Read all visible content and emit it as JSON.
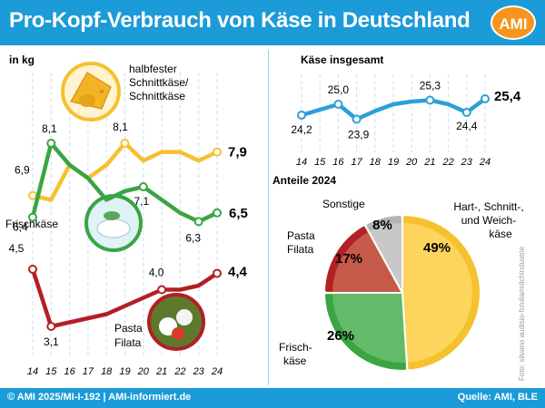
{
  "title": "Pro-Kopf-Verbrauch von Käse in Deutschland",
  "logo": "AMI",
  "footer": {
    "left": "© AMI 2025/MI-I-192 | AMI-informiert.de",
    "right": "Quelle: AMI, BLE"
  },
  "photo_credit": "Foto: silvano audisio-fotolia/milchindustrie",
  "colors": {
    "header": "#1b9bd7",
    "halbfest": "#f6c12e",
    "frisch": "#3aa542",
    "pasta": "#b31f24",
    "insgesamt": "#2d9fd8",
    "sonstige": "#b3b3b3",
    "logo": "#f7941d"
  },
  "chart_data": [
    {
      "type": "line",
      "ylabel": "in kg",
      "x": [
        "14",
        "15",
        "16",
        "17",
        "18",
        "19",
        "20",
        "21",
        "22",
        "23",
        "24"
      ],
      "series": [
        {
          "name": "halbfester Schnittkäse/ Schnittkäse",
          "values": [
            6.9,
            6.8,
            7.6,
            7.3,
            7.6,
            8.1,
            7.7,
            7.9,
            7.9,
            7.7,
            7.9
          ],
          "labels": [
            "6,9",
            "",
            "",
            "",
            "",
            "8,1",
            "",
            "",
            "",
            "",
            "7,9"
          ]
        },
        {
          "name": "Frischkäse",
          "values": [
            6.4,
            8.1,
            7.6,
            7.3,
            6.8,
            7.0,
            7.1,
            6.8,
            6.5,
            6.3,
            6.5
          ],
          "labels": [
            "6,4",
            "8,1",
            "",
            "",
            "",
            "",
            "7,1",
            "",
            "",
            "6,3",
            "6,5"
          ]
        },
        {
          "name": "Pasta Filata",
          "values": [
            4.5,
            3.1,
            3.2,
            3.3,
            3.4,
            3.6,
            3.8,
            4.0,
            4.0,
            4.1,
            4.4
          ],
          "labels": [
            "4,5",
            "3,1",
            "",
            "",
            "",
            "",
            "",
            "4,0",
            "",
            "",
            "4,4"
          ]
        }
      ]
    },
    {
      "type": "line",
      "title": "Käse insgesamt",
      "x": [
        "14",
        "15",
        "16",
        "17",
        "18",
        "19",
        "20",
        "21",
        "22",
        "23",
        "24"
      ],
      "series": [
        {
          "name": "Käse insgesamt",
          "values": [
            24.2,
            24.6,
            25.0,
            23.9,
            24.5,
            25.0,
            25.2,
            25.3,
            25.0,
            24.4,
            25.4
          ],
          "labels": [
            "24,2",
            "",
            "25,0",
            "23,9",
            "",
            "",
            "",
            "25,3",
            "",
            "24,4",
            "25,4"
          ]
        }
      ]
    },
    {
      "type": "pie",
      "title": "Anteile 2024",
      "slices": [
        {
          "name": "Hart-, Schnitt-, und Weichkäse",
          "value": 49,
          "label": "49%",
          "color": "#f6c12e"
        },
        {
          "name": "Frischkäse",
          "value": 26,
          "label": "26%",
          "color": "#3aa542"
        },
        {
          "name": "Pasta Filata",
          "value": 17,
          "label": "17%",
          "color": "#c45a47"
        },
        {
          "name": "Sonstige",
          "value": 8,
          "label": "8%",
          "color": "#b3b3b3"
        }
      ]
    }
  ]
}
